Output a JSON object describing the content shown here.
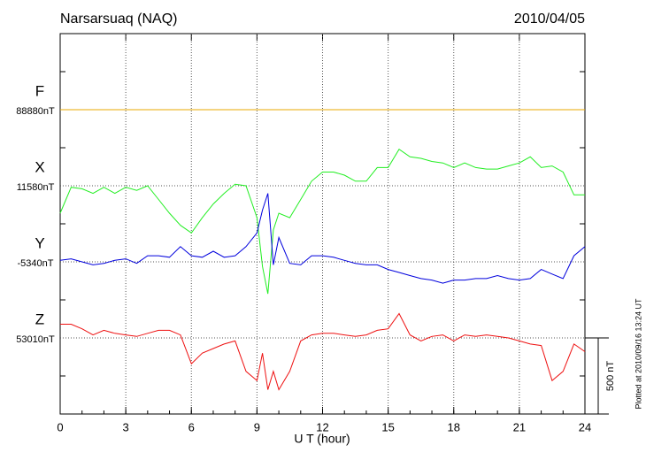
{
  "chart_data": {
    "type": "line",
    "title": "Narsarsuaq (NAQ)",
    "date": "2010/04/05",
    "xlabel": "U T (hour)",
    "footnote": "Plotted at 2010/09/16 13:24 UT",
    "xlim": [
      0,
      24
    ],
    "xticks": [
      0,
      3,
      6,
      9,
      12,
      15,
      18,
      21,
      24
    ],
    "grid": true,
    "scale": {
      "value": 500,
      "label": "500 nT"
    },
    "x": [
      0,
      0.5,
      1,
      1.5,
      2,
      2.5,
      3,
      3.5,
      4,
      4.5,
      5,
      5.5,
      6,
      6.5,
      7,
      7.5,
      8,
      8.5,
      9,
      9.25,
      9.5,
      9.75,
      10,
      10.5,
      11,
      11.5,
      12,
      12.5,
      13,
      13.5,
      14,
      14.5,
      15,
      15.5,
      16,
      16.5,
      17,
      17.5,
      18,
      18.5,
      19,
      19.5,
      20,
      20.5,
      21,
      21.5,
      22,
      22.5,
      23,
      23.5,
      24
    ],
    "series": [
      {
        "name": "F",
        "color": "#e8a800",
        "baseline": 88880,
        "baseline_label": "88880nT",
        "x": [
          0,
          24
        ],
        "values": [
          88880,
          88880
        ]
      },
      {
        "name": "X",
        "color": "#22ee22",
        "baseline": 11580,
        "baseline_label": "11580nT",
        "values": [
          11400,
          11570,
          11560,
          11530,
          11570,
          11530,
          11570,
          11550,
          11580,
          11490,
          11400,
          11320,
          11270,
          11370,
          11460,
          11530,
          11590,
          11580,
          11370,
          11050,
          10870,
          11290,
          11400,
          11370,
          11490,
          11610,
          11670,
          11670,
          11650,
          11610,
          11610,
          11700,
          11700,
          11820,
          11770,
          11760,
          11740,
          11730,
          11700,
          11730,
          11700,
          11690,
          11690,
          11710,
          11730,
          11770,
          11700,
          11710,
          11670,
          11520,
          11520
        ]
      },
      {
        "name": "Y",
        "color": "#0000dd",
        "baseline": -5340,
        "baseline_label": "-5340nT",
        "values": [
          -5330,
          -5320,
          -5340,
          -5360,
          -5350,
          -5330,
          -5320,
          -5350,
          -5300,
          -5300,
          -5310,
          -5240,
          -5300,
          -5310,
          -5270,
          -5310,
          -5300,
          -5240,
          -5150,
          -5000,
          -4890,
          -5360,
          -5180,
          -5350,
          -5360,
          -5300,
          -5300,
          -5310,
          -5330,
          -5350,
          -5360,
          -5360,
          -5390,
          -5410,
          -5430,
          -5450,
          -5460,
          -5480,
          -5460,
          -5460,
          -5450,
          -5450,
          -5430,
          -5450,
          -5460,
          -5450,
          -5390,
          -5420,
          -5450,
          -5300,
          -5240
        ]
      },
      {
        "name": "Z",
        "color": "#ee1111",
        "baseline": 53010,
        "baseline_label": "53010nT",
        "values": [
          53100,
          53100,
          53070,
          53030,
          53060,
          53040,
          53030,
          53020,
          53040,
          53060,
          53060,
          53030,
          52840,
          52910,
          52940,
          52970,
          52990,
          52790,
          52730,
          52910,
          52670,
          52790,
          52670,
          52790,
          52990,
          53030,
          53040,
          53040,
          53030,
          53020,
          53030,
          53060,
          53070,
          53170,
          53030,
          52990,
          53020,
          53030,
          52990,
          53030,
          53020,
          53030,
          53020,
          53010,
          52990,
          52970,
          52960,
          52730,
          52790,
          52970,
          52920
        ]
      }
    ]
  }
}
